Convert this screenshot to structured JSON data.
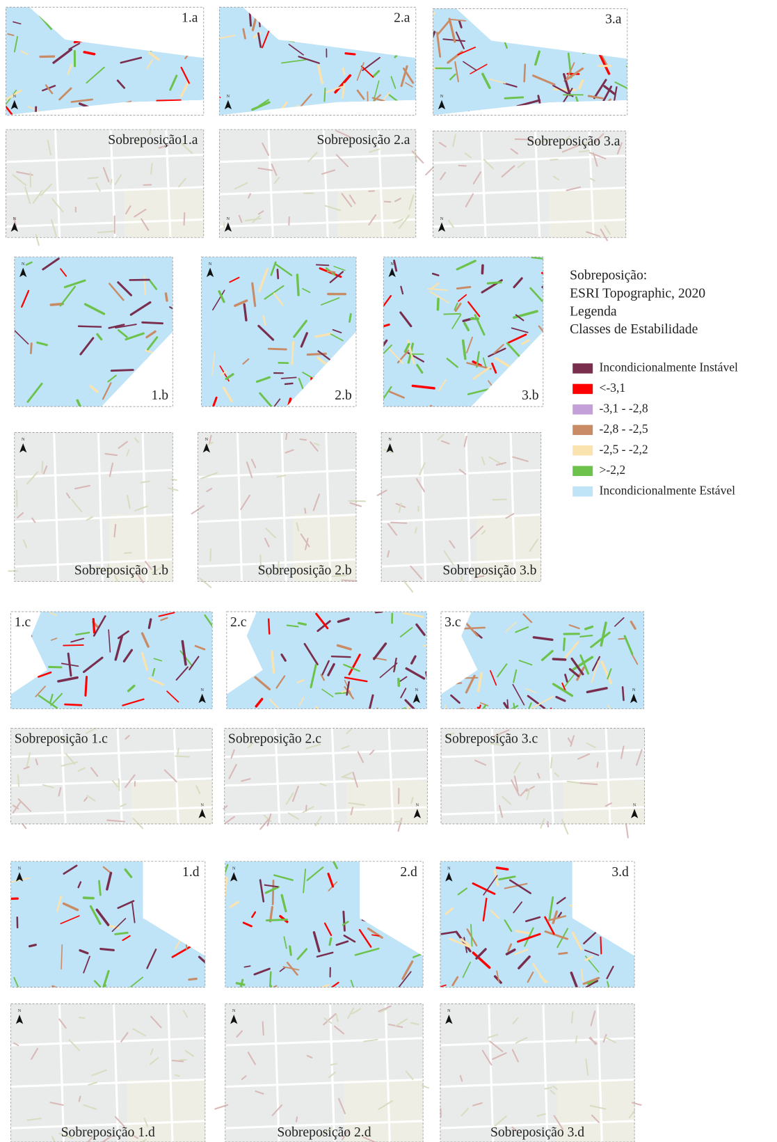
{
  "rows": [
    {
      "maps": [
        "1.a",
        "2.a",
        "3.a"
      ],
      "overlays": [
        "Sobreposição1.a",
        "Sobreposição 2.a",
        "Sobreposição 3.a"
      ]
    },
    {
      "maps": [
        "1.b",
        "2.b",
        "3.b"
      ],
      "overlays": [
        "Sobreposição 1.b",
        "Sobreposição 2.b",
        "Sobreposição 3.b"
      ]
    },
    {
      "maps": [
        "1.c",
        "2.c",
        "3.c"
      ],
      "overlays": [
        "Sobreposição 1.c",
        "Sobreposição 2.c",
        "Sobreposição 3.c"
      ]
    },
    {
      "maps": [
        "1.d",
        "2.d",
        "3.d"
      ],
      "overlays": [
        "Sobreposição 1.d",
        "Sobreposição 2.d",
        "Sobreposição 3.d"
      ]
    }
  ],
  "legend": {
    "lines": [
      "Sobreposição:",
      "ESRI Topographic, 2020",
      "Legenda",
      "Classes de Estabilidade"
    ],
    "items": [
      {
        "label": "Incondicionalmente Instável",
        "color": "#7a2e4e"
      },
      {
        "label": "<-3,1",
        "color": "#ff0000"
      },
      {
        "label": "-3,1 - -2,8",
        "color": "#c3a0d8"
      },
      {
        "label": "-2,8 - -2,5",
        "color": "#c98b66"
      },
      {
        "label": "-2,5 - -2,2",
        "color": "#fbe3b0"
      },
      {
        "label": ">-2,2",
        "color": "#6cc24a"
      },
      {
        "label": "Incondicionalmente Estável",
        "color": "#bfe3f7"
      }
    ]
  }
}
